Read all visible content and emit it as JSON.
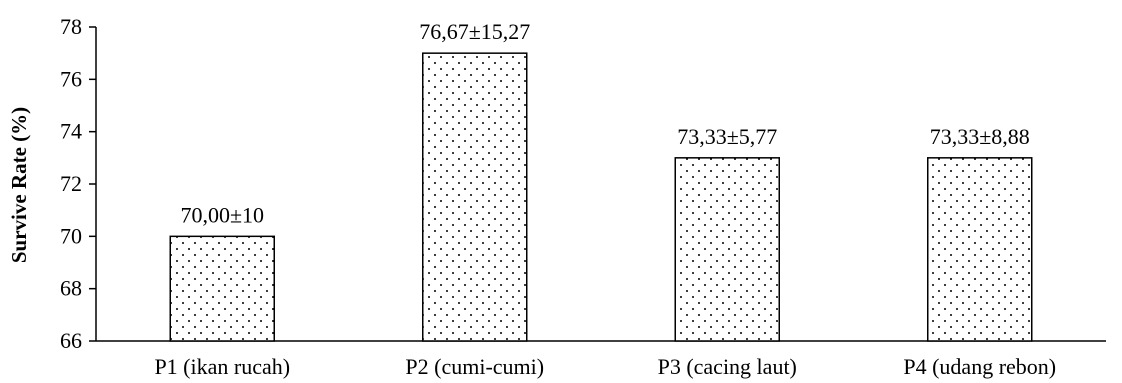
{
  "chart_data": {
    "type": "bar",
    "title": "",
    "xlabel": "",
    "ylabel": "Survive Rate (%)",
    "ylim": [
      66,
      78
    ],
    "yticks": [
      66,
      68,
      70,
      72,
      74,
      76,
      78
    ],
    "categories": [
      "P1 (ikan rucah)",
      "P2 (cumi-cumi)",
      "P3 (cacing laut)",
      "P4 (udang rebon)"
    ],
    "values": [
      70,
      77,
      73,
      73
    ],
    "data_labels": [
      "70,00±10",
      "76,67±15,27",
      "73,33±5,77",
      "73,33±8,88"
    ],
    "grid": false,
    "legend": "none",
    "bar_fill": "dotted",
    "colors": {
      "bar_outline": "#000000",
      "dot": "#000000",
      "background": "#ffffff"
    }
  }
}
